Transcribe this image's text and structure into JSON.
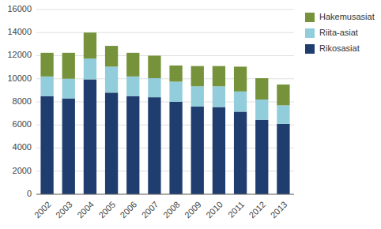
{
  "chart_data": {
    "type": "bar",
    "stacked": true,
    "categories": [
      "2002",
      "2003",
      "2004",
      "2005",
      "2006",
      "2007",
      "2008",
      "2009",
      "2010",
      "2011",
      "2012",
      "2013"
    ],
    "series": [
      {
        "name": "Rikosasiat",
        "color": "#1F3D6E",
        "values": [
          8500,
          8300,
          9950,
          8800,
          8500,
          8400,
          8000,
          7600,
          7550,
          7150,
          6450,
          6100
        ]
      },
      {
        "name": "Riita-asiat",
        "color": "#92CDDC",
        "values": [
          1700,
          1700,
          1800,
          2250,
          1700,
          1650,
          1750,
          1750,
          1800,
          1750,
          1750,
          1600
        ]
      },
      {
        "name": "Hakemusasiat",
        "color": "#76933C",
        "values": [
          2050,
          2250,
          2250,
          1800,
          2050,
          1950,
          1400,
          1750,
          1750,
          2150,
          1850,
          1800
        ]
      }
    ],
    "ylim": [
      0,
      16000
    ],
    "yticks": [
      0,
      2000,
      4000,
      6000,
      8000,
      10000,
      12000,
      14000,
      16000
    ],
    "grid": true,
    "legend": "right"
  }
}
